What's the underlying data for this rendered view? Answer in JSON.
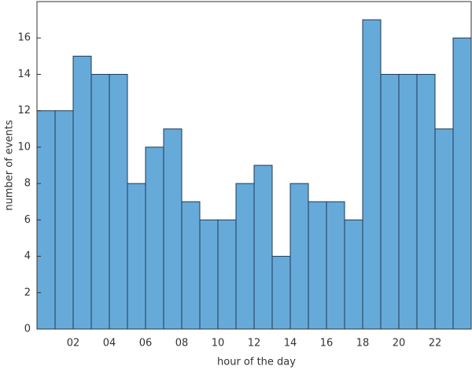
{
  "chart_data": {
    "type": "histogram",
    "xlabel": "hour of the day",
    "ylabel": "number of events",
    "bins": [
      0,
      1,
      2,
      3,
      4,
      5,
      6,
      7,
      8,
      9,
      10,
      11,
      12,
      13,
      14,
      15,
      16,
      17,
      18,
      19,
      20,
      21,
      22,
      23,
      24
    ],
    "values": [
      12,
      12,
      15,
      14,
      14,
      8,
      10,
      11,
      7,
      6,
      6,
      8,
      9,
      4,
      8,
      7,
      7,
      6,
      17,
      14,
      14,
      14,
      11,
      16
    ],
    "color": "#66aad9",
    "edgecolor": "#1f3a55",
    "xlim": [
      0,
      24
    ],
    "xticks": [
      {
        "value": 2,
        "label": "02"
      },
      {
        "value": 4,
        "label": "04"
      },
      {
        "value": 6,
        "label": "06"
      },
      {
        "value": 8,
        "label": "08"
      },
      {
        "value": 10,
        "label": "10"
      },
      {
        "value": 12,
        "label": "12"
      },
      {
        "value": 14,
        "label": "14"
      },
      {
        "value": 16,
        "label": "16"
      },
      {
        "value": 18,
        "label": "18"
      },
      {
        "value": 20,
        "label": "20"
      },
      {
        "value": 22,
        "label": "22"
      }
    ],
    "ylim": [
      0,
      18
    ],
    "yticks": [
      0,
      2,
      4,
      6,
      8,
      10,
      12,
      14,
      16
    ]
  }
}
